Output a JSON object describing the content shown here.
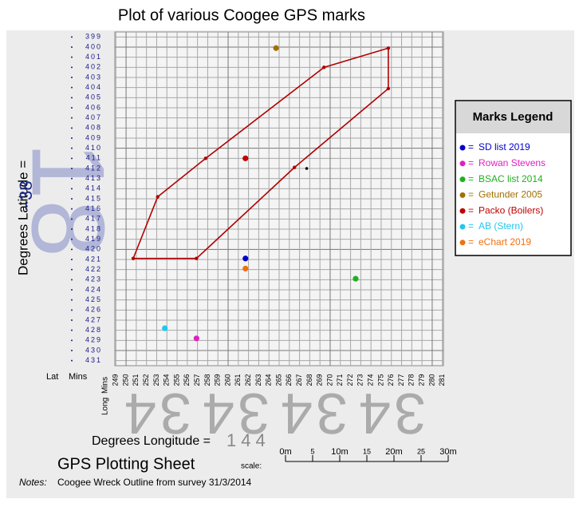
{
  "chart_data": {
    "type": "scatter",
    "title": "Plot of various Coogee GPS marks",
    "ylabel": "Degrees Latitude =",
    "lat_deg": "−38",
    "xlabel": "Degrees Longitude =",
    "lon_deg": "144",
    "lat_watermark": "18",
    "long_watermark": "34",
    "lat_col": "Lat",
    "mins_col": "Mins",
    "long_row": "Long",
    "sheet_title": "GPS Plotting Sheet",
    "notes_label": "Notes:",
    "notes": "Coogee Wreck Outline from survey 31/3/2014",
    "legend_title": "Marks Legend",
    "legend_prefix": "=",
    "scale": {
      "label": "scale:",
      "ticks": [
        {
          "value": 0,
          "label": "0m"
        },
        5,
        {
          "value": 10,
          "label": "10m"
        },
        15,
        {
          "value": 20,
          "label": "20m"
        },
        25,
        {
          "value": 30,
          "label": "30m"
        }
      ]
    },
    "xlim": [
      248.9,
      281.1
    ],
    "ylim": [
      431.5,
      398.5
    ],
    "xticks": [
      249,
      250,
      251,
      252,
      253,
      254,
      255,
      256,
      257,
      258,
      259,
      260,
      261,
      262,
      263,
      264,
      265,
      266,
      267,
      268,
      269,
      270,
      271,
      272,
      273,
      274,
      275,
      276,
      277,
      278,
      279,
      280,
      281
    ],
    "yticks": [
      399,
      400,
      401,
      402,
      403,
      404,
      405,
      406,
      407,
      408,
      409,
      410,
      411,
      412,
      413,
      414,
      415,
      416,
      417,
      418,
      419,
      420,
      421,
      422,
      423,
      424,
      425,
      426,
      427,
      428,
      429,
      430,
      431
    ],
    "grid": true,
    "outline": {
      "color": "#b00000",
      "x": [
        250.7,
        253.1,
        257.8,
        269.4,
        275.7,
        275.7,
        266.5,
        256.9
      ],
      "y": [
        420.9,
        414.8,
        411.0,
        402.0,
        400.1,
        404.1,
        411.9,
        420.9
      ]
    },
    "series": [
      {
        "name": "SD list 2019",
        "color": "#0000cc",
        "x": [
          261.7
        ],
        "y": [
          420.9
        ]
      },
      {
        "name": "Rowan Stevens",
        "color": "#e020c0",
        "x": [
          256.9
        ],
        "y": [
          428.8
        ]
      },
      {
        "name": "BSAC list 2014",
        "color": "#20b020",
        "x": [
          272.5
        ],
        "y": [
          422.9
        ]
      },
      {
        "name": "Getunder 2005",
        "color": "#a07000",
        "x": [
          264.7
        ],
        "y": [
          400.1
        ]
      },
      {
        "name": "Packo (Boilers)",
        "color": "#c00000",
        "x": [
          261.7
        ],
        "y": [
          411.0
        ]
      },
      {
        "name": "AB (Stern)",
        "color": "#20c8f0",
        "x": [
          253.8
        ],
        "y": [
          427.8
        ]
      },
      {
        "name": "eChart 2019",
        "color": "#f07010",
        "x": [
          261.7
        ],
        "y": [
          421.9
        ]
      },
      {
        "color": "#000000",
        "x": [
          267.7
        ],
        "y": [
          412.0
        ]
      }
    ]
  }
}
